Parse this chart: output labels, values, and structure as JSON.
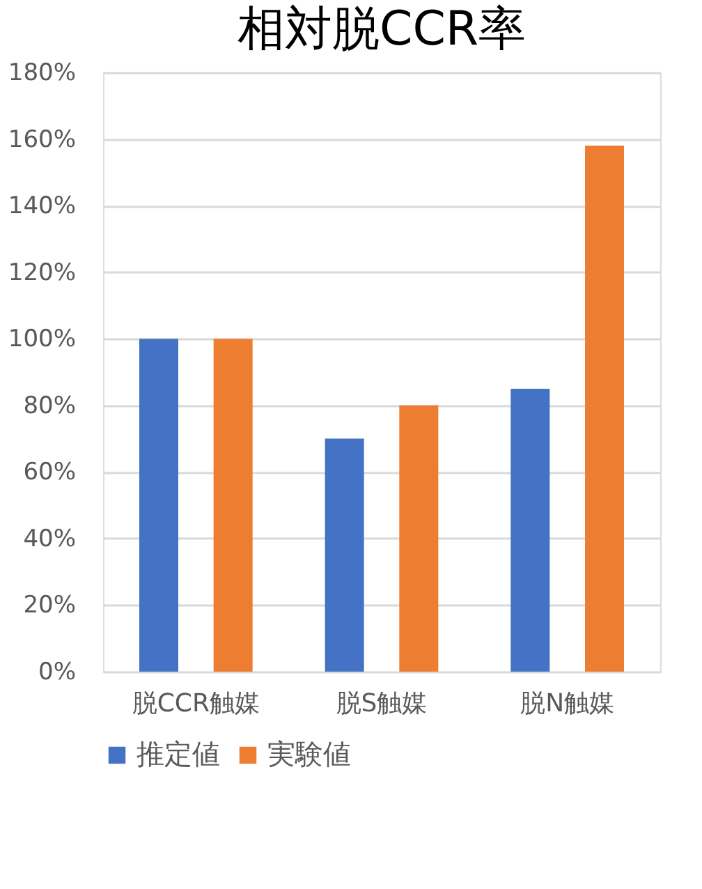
{
  "chart_data": {
    "type": "bar",
    "title": "相対脱CCR率",
    "categories": [
      "脱CCR触媒",
      "脱S触媒",
      "脱N触媒"
    ],
    "series": [
      {
        "name": "推定値",
        "color": "#4472c4",
        "values": [
          100,
          70,
          85
        ]
      },
      {
        "name": "実験値",
        "color": "#ed7d31",
        "values": [
          100,
          80,
          158
        ]
      }
    ],
    "ylim": [
      0,
      180
    ],
    "yticks": [
      {
        "value": 0,
        "label": "0%"
      },
      {
        "value": 20,
        "label": "20%"
      },
      {
        "value": 40,
        "label": "40%"
      },
      {
        "value": 60,
        "label": "60%"
      },
      {
        "value": 80,
        "label": "80%"
      },
      {
        "value": 100,
        "label": "100%"
      },
      {
        "value": 120,
        "label": "120%"
      },
      {
        "value": 140,
        "label": "140%"
      },
      {
        "value": 160,
        "label": "160%"
      },
      {
        "value": 180,
        "label": "180%"
      }
    ],
    "grid": "y",
    "legend": "bottom"
  }
}
